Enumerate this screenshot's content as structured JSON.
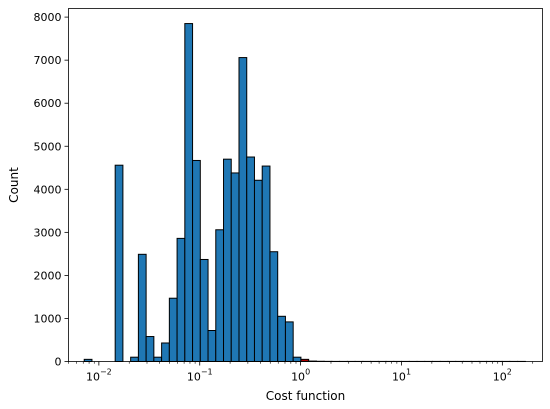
{
  "chart_data": {
    "type": "bar",
    "xlabel": "Cost function",
    "ylabel": "Count",
    "xscale": "log",
    "xlim": [
      0.005,
      250
    ],
    "ylim": [
      0,
      8200
    ],
    "grid": false,
    "legend": "none",
    "x_ticks": [
      {
        "value": 0.01,
        "base": "10",
        "exp": "−2"
      },
      {
        "value": 0.1,
        "base": "10",
        "exp": "−1"
      },
      {
        "value": 1,
        "base": "10",
        "exp": "0"
      },
      {
        "value": 10,
        "base": "10",
        "exp": "1"
      },
      {
        "value": 100,
        "base": "10",
        "exp": "2"
      }
    ],
    "y_ticks": [
      0,
      1000,
      2000,
      3000,
      4000,
      5000,
      6000,
      7000,
      8000
    ],
    "colors": {
      "below_threshold": "#1f77b4",
      "above_threshold": "#aa0000",
      "edge": "#000000"
    },
    "bin_edges": [
      0.006,
      0.00716,
      0.00854,
      0.01019,
      0.01216,
      0.01451,
      0.01731,
      0.02066,
      0.02465,
      0.02941,
      0.03509,
      0.04188,
      0.04997,
      0.05962,
      0.07114,
      0.08489,
      0.1013,
      0.1209,
      0.1442,
      0.1721,
      0.2053,
      0.245,
      0.2924,
      0.3488,
      0.4162,
      0.4967,
      0.5927,
      0.7072,
      0.8439,
      1.007,
      1.2016,
      1.4338,
      1.7109,
      2.0415,
      2.436,
      2.9068,
      3.4685,
      4.1388,
      4.9386,
      5.8929,
      7.0317,
      8.3905,
      10.012,
      11.947,
      14.255,
      17.01,
      20.297,
      24.22,
      28.9,
      34.485,
      41.149,
      49.101,
      58.589,
      69.911,
      83.422,
      99.543,
      118.78,
      141.73,
      169.12
    ],
    "values": [
      0,
      50,
      0,
      0,
      0,
      4560,
      0,
      100,
      2490,
      580,
      100,
      430,
      1470,
      2860,
      7850,
      4670,
      2370,
      720,
      3060,
      4700,
      4380,
      7060,
      4750,
      4210,
      4540,
      2550,
      1050,
      920,
      100,
      50,
      10,
      5,
      3,
      2,
      2,
      2,
      2,
      2,
      2,
      2,
      2,
      2,
      2,
      2,
      2,
      2,
      2,
      2,
      2,
      2,
      2,
      2,
      2,
      2,
      2,
      2,
      2,
      2
    ],
    "highlight_from": 1.007
  }
}
